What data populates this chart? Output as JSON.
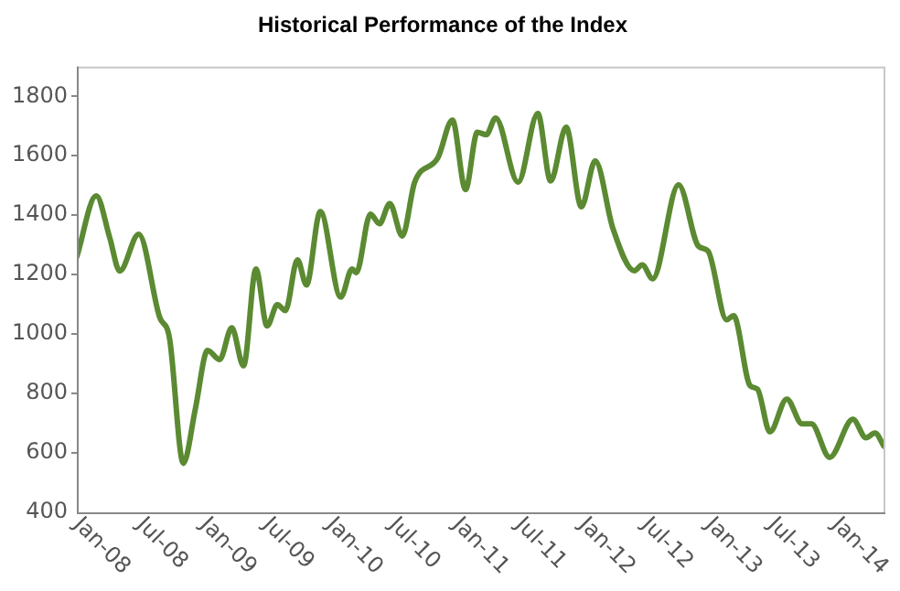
{
  "chart_data": {
    "type": "line",
    "title": "Historical Performance of the Index",
    "x": [
      "2008-01-01",
      "2008-02-26",
      "2008-04-05",
      "2008-05-04",
      "2008-06-28",
      "2008-08-27",
      "2008-09-25",
      "2008-11-04",
      "2008-12-09",
      "2009-01-13",
      "2009-02-17",
      "2009-03-24",
      "2009-04-27",
      "2009-06-02",
      "2009-07-04",
      "2009-08-03",
      "2009-08-26",
      "2009-09-30",
      "2009-10-26",
      "2009-12-05",
      "2010-02-02",
      "2010-03-07",
      "2010-03-19",
      "2010-04-29",
      "2010-05-25",
      "2010-06-24",
      "2010-07-30",
      "2010-09-04",
      "2010-11-10",
      "2010-12-22",
      "2011-01-29",
      "2011-03-04",
      "2011-03-30",
      "2011-04-26",
      "2011-06-30",
      "2011-08-26",
      "2011-10-02",
      "2011-11-16",
      "2011-12-30",
      "2012-02-08",
      "2012-03-30",
      "2012-05-31",
      "2012-06-23",
      "2012-07-23",
      "2012-10-06",
      "2012-12-03",
      "2012-12-30",
      "2013-02-22",
      "2013-03-14",
      "2013-05-01",
      "2013-05-22",
      "2013-06-27",
      "2013-08-15",
      "2013-09-28",
      "2013-10-25",
      "2013-12-17",
      "2014-02-22",
      "2014-04-01",
      "2014-04-27",
      "2014-05-23"
    ],
    "series": [
      {
        "color": "#5b8a32",
        "values": [
          1260,
          1465,
          1325,
          1212,
          1336,
          1058,
          986,
          565,
          750,
          945,
          914,
          1021,
          893,
          1219,
          1027,
          1099,
          1079,
          1250,
          1165,
          1412,
          1124,
          1219,
          1206,
          1404,
          1371,
          1439,
          1330,
          1511,
          1593,
          1720,
          1486,
          1679,
          1671,
          1727,
          1511,
          1742,
          1515,
          1696,
          1428,
          1583,
          1356,
          1213,
          1233,
          1186,
          1502,
          1295,
          1280,
          1048,
          1062,
          826,
          815,
          671,
          781,
          698,
          698,
          585,
          713,
          651,
          667,
          622
        ]
      }
    ],
    "xlim": [
      "2008-01-01",
      "2014-05-27"
    ],
    "xticks": [
      {
        "value": "2008-01-01",
        "label": "Jan-08"
      },
      {
        "value": "2008-07-01",
        "label": "Jul-08"
      },
      {
        "value": "2009-01-01",
        "label": "Jan-09"
      },
      {
        "value": "2009-07-01",
        "label": "Jul-09"
      },
      {
        "value": "2010-01-01",
        "label": "Jan-10"
      },
      {
        "value": "2010-07-01",
        "label": "Jul-10"
      },
      {
        "value": "2011-01-01",
        "label": "Jan-11"
      },
      {
        "value": "2011-07-01",
        "label": "Jul-11"
      },
      {
        "value": "2012-01-01",
        "label": "Jan-12"
      },
      {
        "value": "2012-07-01",
        "label": "Jul-12"
      },
      {
        "value": "2013-01-01",
        "label": "Jan-13"
      },
      {
        "value": "2013-07-01",
        "label": "Jul-13"
      },
      {
        "value": "2014-01-01",
        "label": "Jan-14"
      }
    ],
    "ylim": [
      400,
      1900
    ],
    "yticks": [
      400,
      600,
      800,
      1000,
      1200,
      1400,
      1600,
      1800
    ],
    "grid": false,
    "legend": false,
    "marker": "none",
    "line_style": "solid"
  }
}
